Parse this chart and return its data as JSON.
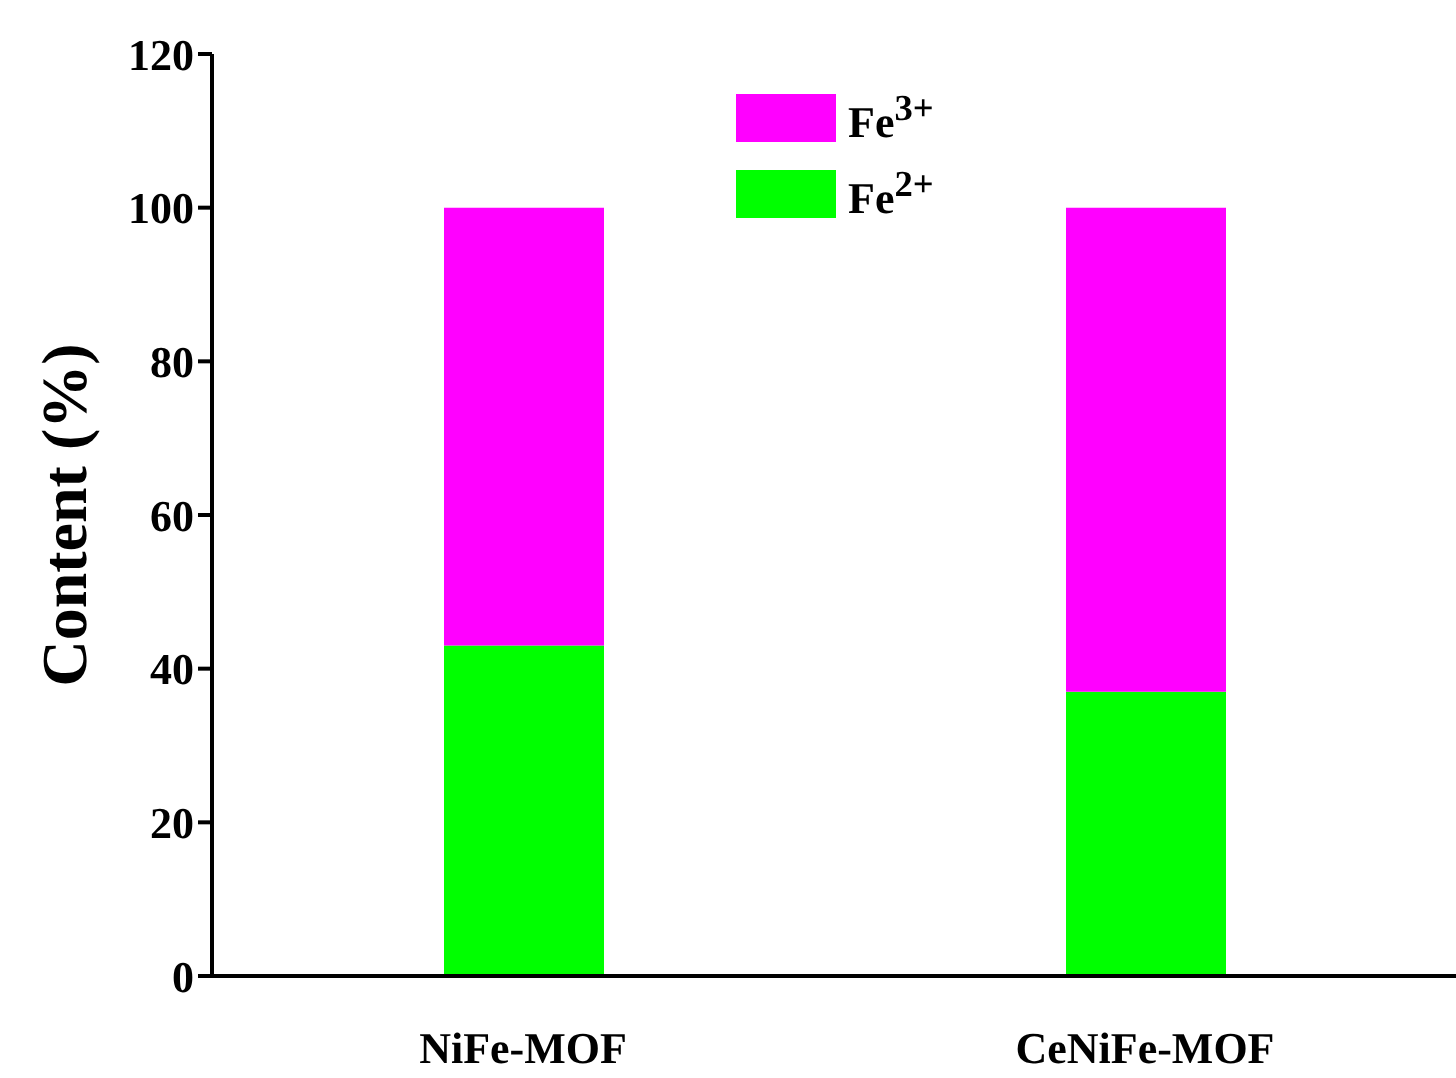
{
  "chart_data": {
    "type": "bar",
    "ylabel": "Content (%)",
    "categories": [
      "NiFe-MOF",
      "CeNiFe-MOF"
    ],
    "stacked": true,
    "series": [
      {
        "name": "Fe$^{2+}$",
        "color": "#00ff00",
        "values": [
          43,
          37
        ]
      },
      {
        "name": "Fe$^{3+}$",
        "color": "#ff00ff",
        "values": [
          57,
          63
        ]
      }
    ],
    "ylim": [
      0,
      120
    ],
    "yticks": [
      0,
      20,
      40,
      60,
      80,
      100,
      120
    ],
    "legend": "top",
    "grid": false
  }
}
